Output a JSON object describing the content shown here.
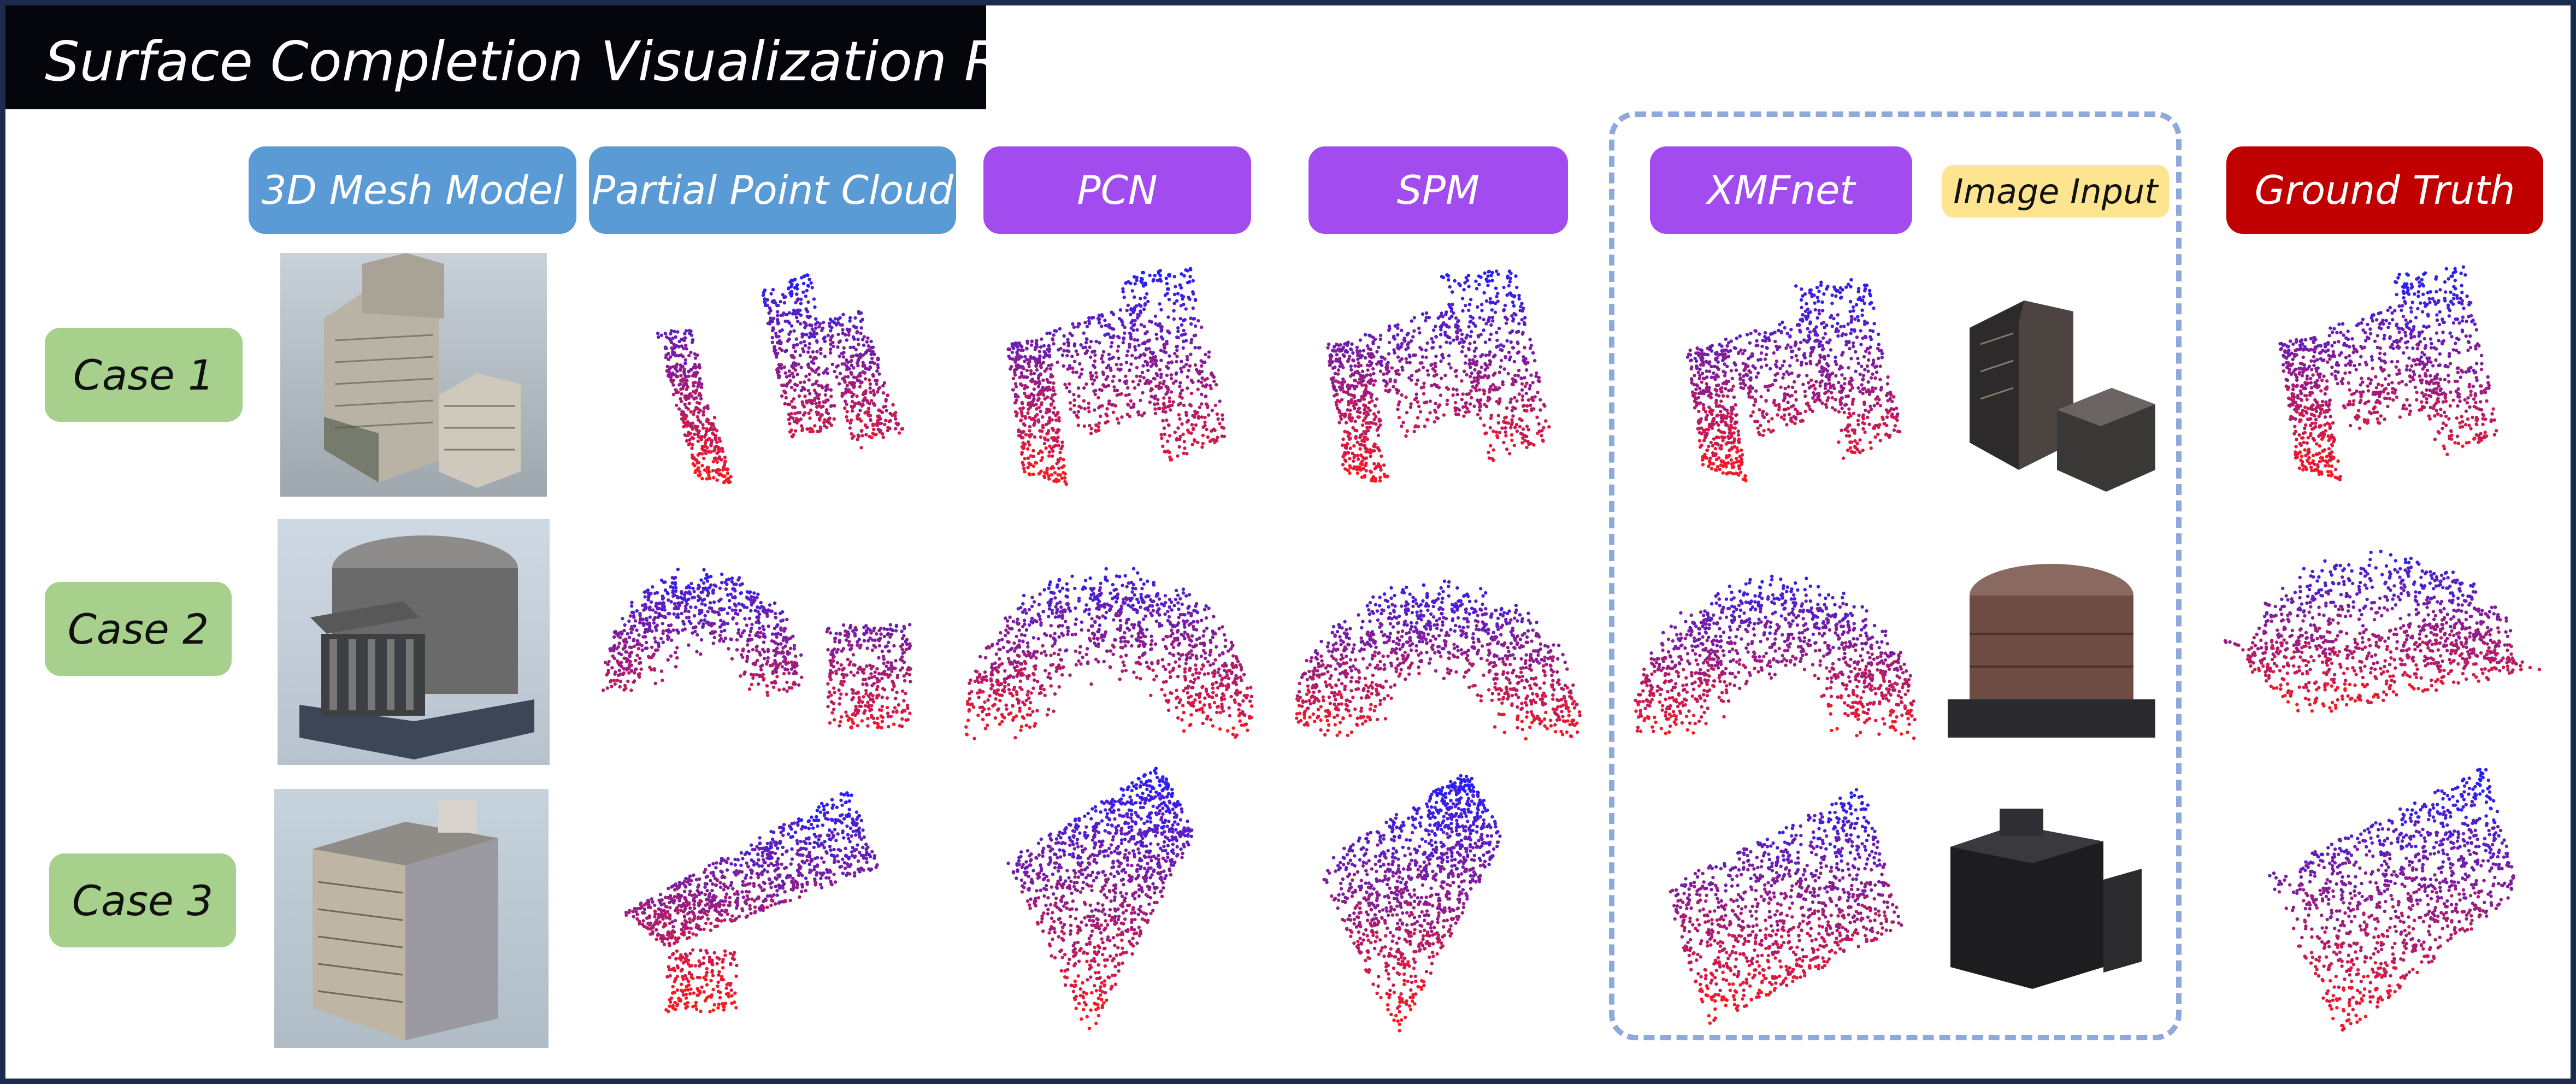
{
  "title": "Surface Completion Visualization Results",
  "columns": [
    {
      "label": "3D Mesh Model",
      "color": "#5b9bd5"
    },
    {
      "label": "Partial Point Cloud",
      "color": "#5b9bd5"
    },
    {
      "label": "PCN",
      "color": "#a24cf0"
    },
    {
      "label": "SPM",
      "color": "#a24cf0"
    },
    {
      "label": "XMFnet",
      "color": "#a24cf0"
    },
    {
      "label": "Image Input",
      "color": "#fde48f"
    },
    {
      "label": "Ground Truth",
      "color": "#c00000"
    }
  ],
  "rows": [
    "Case 1",
    "Case 2",
    "Case 3"
  ],
  "point_colors": {
    "top": "#2020ff",
    "bottom": "#ff1a1a"
  },
  "icons": {
    "mesh_model": "building-render",
    "image_input": "building-photo"
  }
}
